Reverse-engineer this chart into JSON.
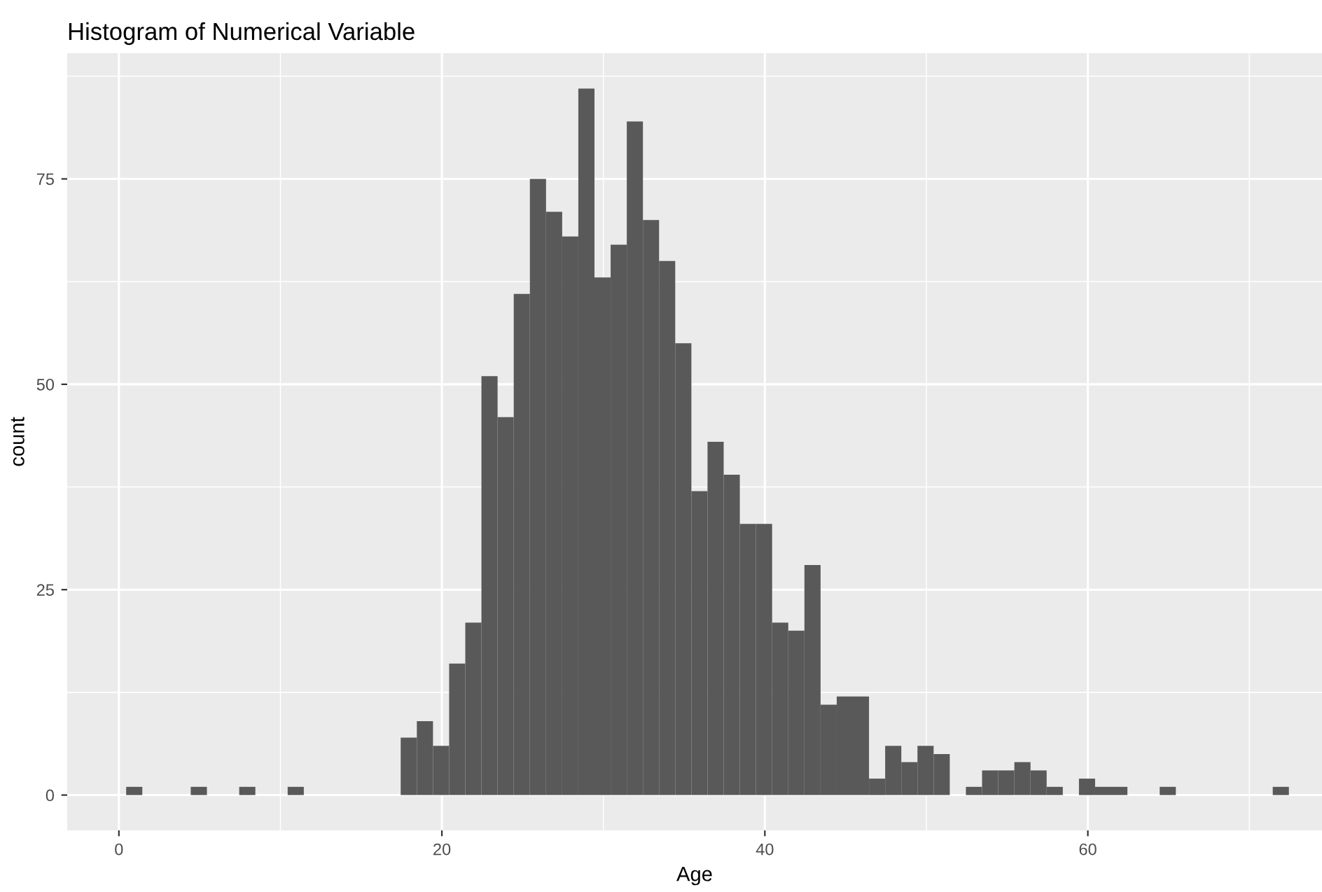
{
  "chart_data": {
    "type": "histogram",
    "title": "Histogram of Numerical Variable",
    "xlabel": "Age",
    "ylabel": "count",
    "bins": [
      0.45,
      1.45,
      2.45,
      3.45,
      4.45,
      5.45,
      6.45,
      7.45,
      8.45,
      9.45,
      10.45,
      11.45,
      12.45,
      13.45,
      14.45,
      15.45,
      16.45,
      17.45,
      18.45,
      19.45,
      20.45,
      21.45,
      22.45,
      23.45,
      24.45,
      25.45,
      26.45,
      27.45,
      28.45,
      29.45,
      30.45,
      31.45,
      32.45,
      33.45,
      34.45,
      35.45,
      36.45,
      37.45,
      38.45,
      39.45,
      40.45,
      41.45,
      42.45,
      43.45,
      44.45,
      45.45,
      46.45,
      47.45,
      48.45,
      49.45,
      50.45,
      51.45,
      52.45,
      53.45,
      54.45,
      55.45,
      56.45,
      57.45,
      58.45,
      59.45,
      60.45,
      61.45,
      62.45,
      63.45,
      64.45,
      65.45,
      66.45,
      67.45,
      68.45,
      69.45,
      70.45,
      71.45,
      72.45
    ],
    "values": [
      1,
      0,
      0,
      0,
      1,
      0,
      0,
      1,
      0,
      0,
      1,
      0,
      0,
      0,
      0,
      0,
      0,
      7,
      9,
      6,
      16,
      21,
      51,
      46,
      61,
      75,
      71,
      68,
      86,
      63,
      67,
      82,
      70,
      65,
      55,
      37,
      43,
      39,
      33,
      33,
      21,
      20,
      28,
      11,
      12,
      12,
      2,
      6,
      4,
      6,
      5,
      0,
      1,
      3,
      3,
      4,
      3,
      1,
      0,
      2,
      1,
      1,
      0,
      0,
      1,
      0,
      0,
      0,
      0,
      0,
      0,
      1
    ],
    "color": "#595959",
    "xlim": [
      -3.2,
      74.5
    ],
    "ylim": [
      -4.3,
      90.3
    ],
    "xticks": [
      0,
      20,
      40,
      60
    ],
    "yticks": [
      0,
      25,
      50,
      75
    ],
    "grid": true
  }
}
